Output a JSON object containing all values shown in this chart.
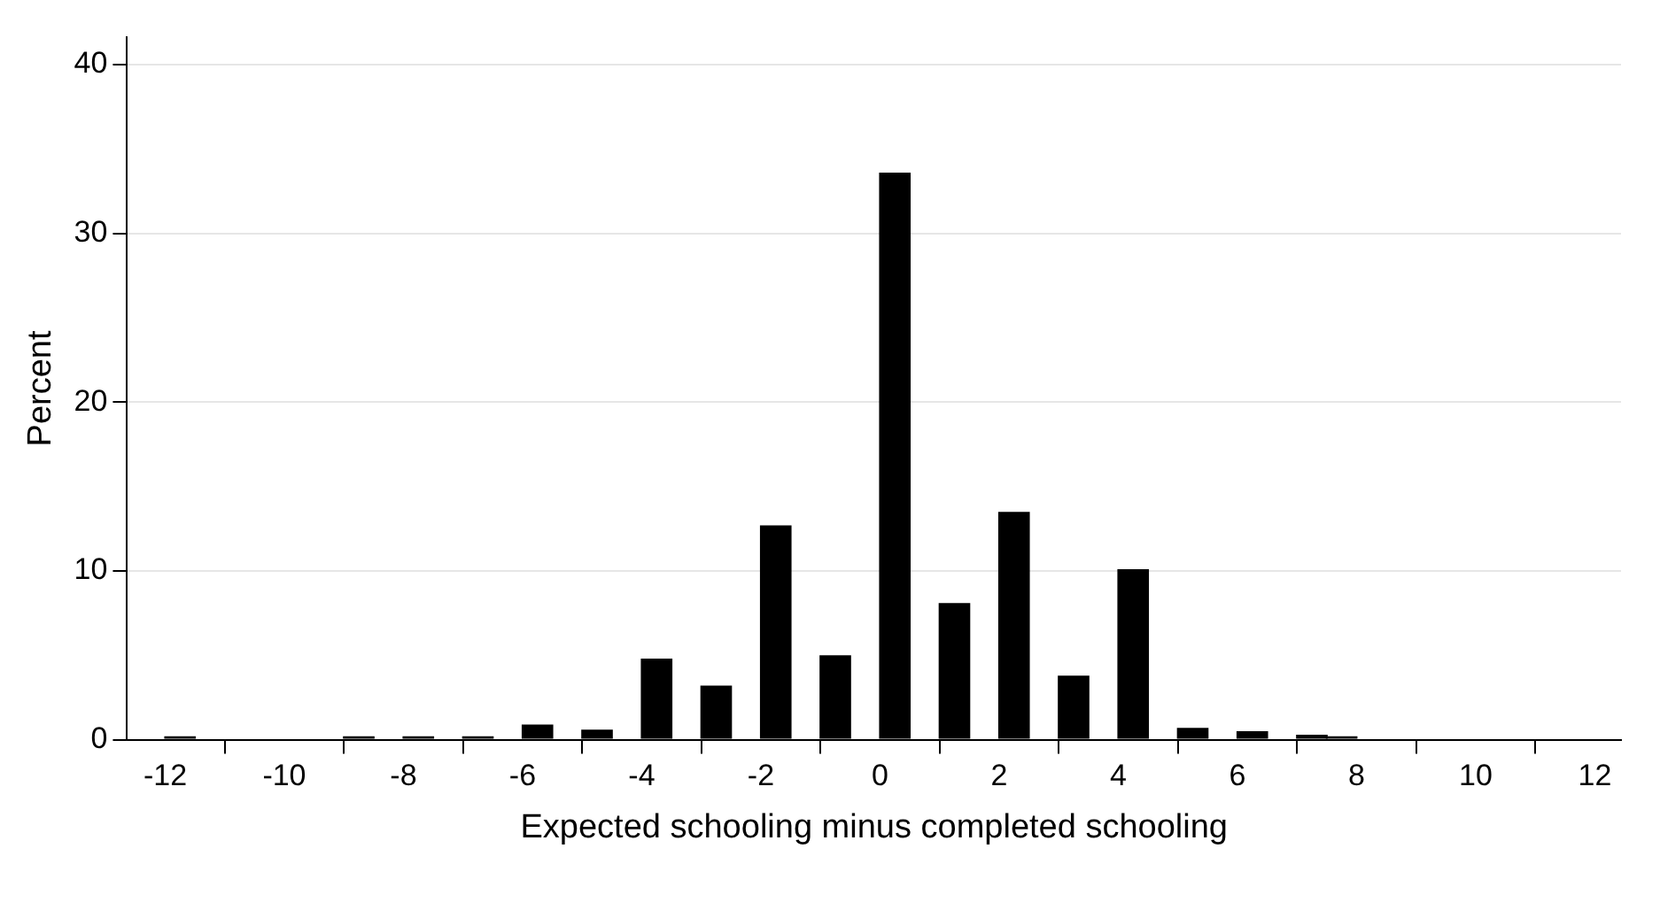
{
  "chart_data": {
    "type": "histogram",
    "xlabel": "Expected schooling minus completed schooling",
    "ylabel": "Percent",
    "bins": [
      -12,
      -11.5,
      -11,
      -10.5,
      -10,
      -9.5,
      -9,
      -8.5,
      -8,
      -7.5,
      -7,
      -6.5,
      -6,
      -5.5,
      -5,
      -4.5,
      -4,
      -3.5,
      -3,
      -2.5,
      -2,
      -1.5,
      -1,
      -0.5,
      0,
      0.5,
      1,
      1.5,
      2,
      2.5,
      3,
      3.5,
      4,
      4.5,
      5,
      5.5,
      6,
      6.5,
      7,
      7.5,
      8
    ],
    "values": [
      0.2,
      0,
      0,
      0,
      0,
      0,
      0.2,
      0,
      0.2,
      0,
      0.2,
      0,
      0.9,
      0,
      0.6,
      0,
      4.8,
      0,
      3.2,
      0,
      12.7,
      0,
      5.0,
      0,
      33.6,
      0,
      8.1,
      0,
      13.5,
      0,
      3.8,
      0,
      10.1,
      0,
      0.7,
      0,
      0.5,
      0,
      0.3,
      0.2
    ],
    "color": "#000000",
    "xlim": [
      -12.64,
      12.44
    ],
    "xticks": [
      -12,
      -10,
      -8,
      -6,
      -4,
      -2,
      0,
      2,
      4,
      6,
      8,
      10,
      12
    ],
    "ylim": [
      0,
      41.6
    ],
    "yticks": [
      0,
      10,
      20,
      30,
      40
    ],
    "grid": "y",
    "legend": false
  }
}
